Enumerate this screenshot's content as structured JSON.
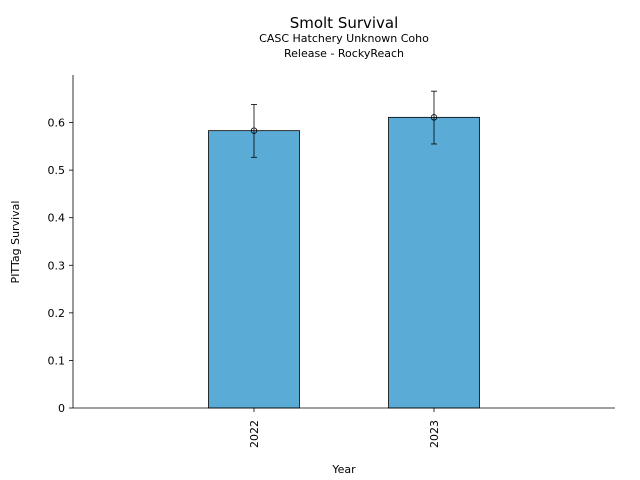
{
  "chart_data": {
    "type": "bar",
    "title": "Smolt Survival",
    "subtitle_lines": [
      "CASC Hatchery Unknown Coho",
      "Release - RockyReach"
    ],
    "xlabel": "Year",
    "ylabel": "PITTag Survival",
    "categories": [
      "2022",
      "2023"
    ],
    "values": [
      0.583,
      0.611
    ],
    "error_low": [
      0.527,
      0.555
    ],
    "error_high": [
      0.638,
      0.666
    ],
    "ylim": [
      0,
      0.7
    ],
    "yticks": [
      0,
      0.1,
      0.2,
      0.3,
      0.4,
      0.5,
      0.6
    ],
    "ytick_labels": [
      "0",
      "0.1",
      "0.2",
      "0.3",
      "0.4",
      "0.5",
      "0.6"
    ],
    "grid": false,
    "bar_color": "#5aabd6"
  }
}
